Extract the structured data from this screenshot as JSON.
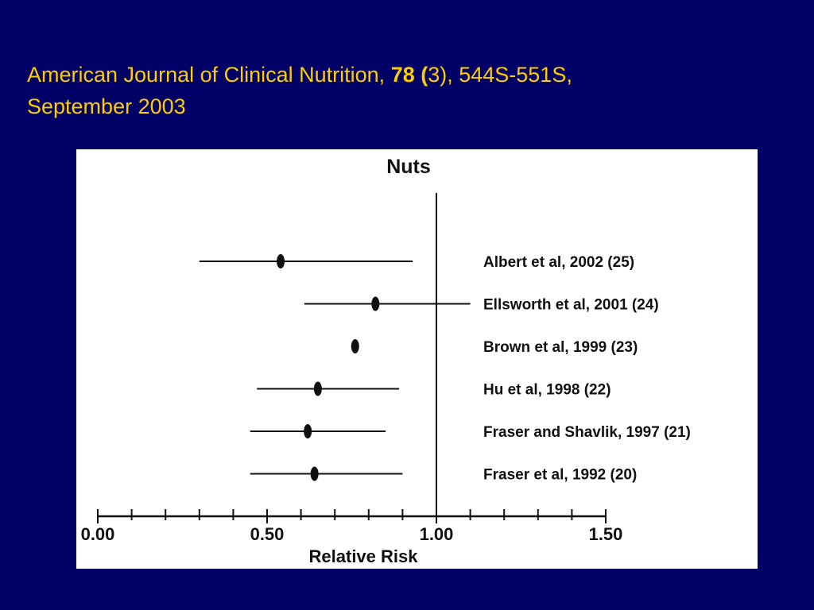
{
  "slide": {
    "title_part1": "American Journal of Clinical Nutrition, ",
    "title_volume": "78 (",
    "title_part2": "3), 544S-551S,",
    "title_line2": "September 2003"
  },
  "colors": {
    "background": "#000066",
    "title_text": "#ffcc00",
    "chart_background": "#ffffff",
    "marks": "#111111"
  },
  "chart_data": {
    "type": "forest",
    "title": "Nuts",
    "xlabel": "Relative Risk",
    "xlim": [
      0.0,
      1.5
    ],
    "reference_line": 1.0,
    "x_ticks": [
      "0.00",
      "0.50",
      "1.00",
      "1.50"
    ],
    "minor_tick_step": 0.1,
    "studies": [
      {
        "label": "Albert et al, 2002 (25)",
        "rr": 0.54,
        "ci": [
          0.3,
          0.93
        ]
      },
      {
        "label": "Ellsworth et al, 2001 (24)",
        "rr": 0.82,
        "ci": [
          0.61,
          1.1
        ]
      },
      {
        "label": "Brown et al, 1999 (23)",
        "rr": 0.76,
        "ci": null
      },
      {
        "label": "Hu et al, 1998 (22)",
        "rr": 0.65,
        "ci": [
          0.47,
          0.89
        ]
      },
      {
        "label": "Fraser and Shavlik, 1997 (21)",
        "rr": 0.62,
        "ci": [
          0.45,
          0.85
        ]
      },
      {
        "label": "Fraser et al, 1992 (20)",
        "rr": 0.64,
        "ci": [
          0.45,
          0.9
        ]
      }
    ]
  }
}
